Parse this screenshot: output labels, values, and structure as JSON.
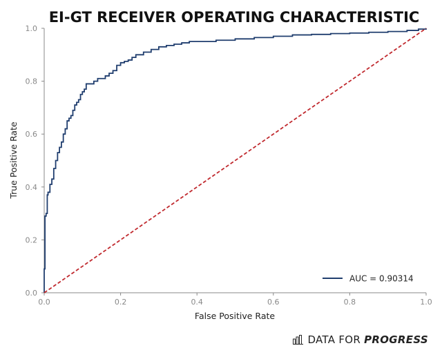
{
  "chart_data": {
    "type": "line",
    "title": "EI-GT RECEIVER OPERATING CHARACTERISTIC",
    "xlabel": "False Positive Rate",
    "ylabel": "True Positive Rate",
    "xlim": [
      0.0,
      1.0
    ],
    "ylim": [
      0.0,
      1.0
    ],
    "xticks": [
      "0.0",
      "0.2",
      "0.4",
      "0.6",
      "0.8",
      "1.0"
    ],
    "yticks": [
      "0.0",
      "0.2",
      "0.4",
      "0.6",
      "0.8",
      "1.0"
    ],
    "grid": false,
    "legend_position": "bottom-right",
    "series": [
      {
        "name": "AUC = 0.90314",
        "color": "#1f3d6e",
        "style": "solid",
        "x": [
          0.0,
          0.0,
          0.002,
          0.005,
          0.008,
          0.01,
          0.015,
          0.02,
          0.025,
          0.03,
          0.035,
          0.04,
          0.045,
          0.05,
          0.055,
          0.06,
          0.065,
          0.07,
          0.075,
          0.08,
          0.085,
          0.09,
          0.095,
          0.1,
          0.105,
          0.11,
          0.12,
          0.13,
          0.14,
          0.15,
          0.16,
          0.17,
          0.18,
          0.19,
          0.2,
          0.21,
          0.22,
          0.23,
          0.24,
          0.26,
          0.28,
          0.3,
          0.32,
          0.34,
          0.36,
          0.38,
          0.4,
          0.45,
          0.5,
          0.55,
          0.6,
          0.65,
          0.7,
          0.75,
          0.8,
          0.85,
          0.9,
          0.95,
          0.98,
          1.0
        ],
        "y": [
          0.0,
          0.09,
          0.29,
          0.3,
          0.37,
          0.38,
          0.41,
          0.43,
          0.47,
          0.5,
          0.53,
          0.55,
          0.57,
          0.6,
          0.62,
          0.65,
          0.66,
          0.67,
          0.69,
          0.71,
          0.72,
          0.73,
          0.75,
          0.76,
          0.77,
          0.79,
          0.79,
          0.8,
          0.81,
          0.81,
          0.82,
          0.83,
          0.84,
          0.86,
          0.87,
          0.875,
          0.88,
          0.89,
          0.9,
          0.91,
          0.92,
          0.93,
          0.935,
          0.94,
          0.945,
          0.95,
          0.95,
          0.955,
          0.96,
          0.965,
          0.97,
          0.975,
          0.977,
          0.98,
          0.982,
          0.985,
          0.988,
          0.992,
          0.997,
          1.0
        ]
      },
      {
        "name": "",
        "color": "#c0282d",
        "style": "dashed",
        "x": [
          0.0,
          1.0
        ],
        "y": [
          0.0,
          1.0
        ]
      }
    ]
  },
  "brand": {
    "icon": "bar-chart-icon",
    "normal_text": "DATA FOR",
    "bold_text": "PROGRESS"
  }
}
